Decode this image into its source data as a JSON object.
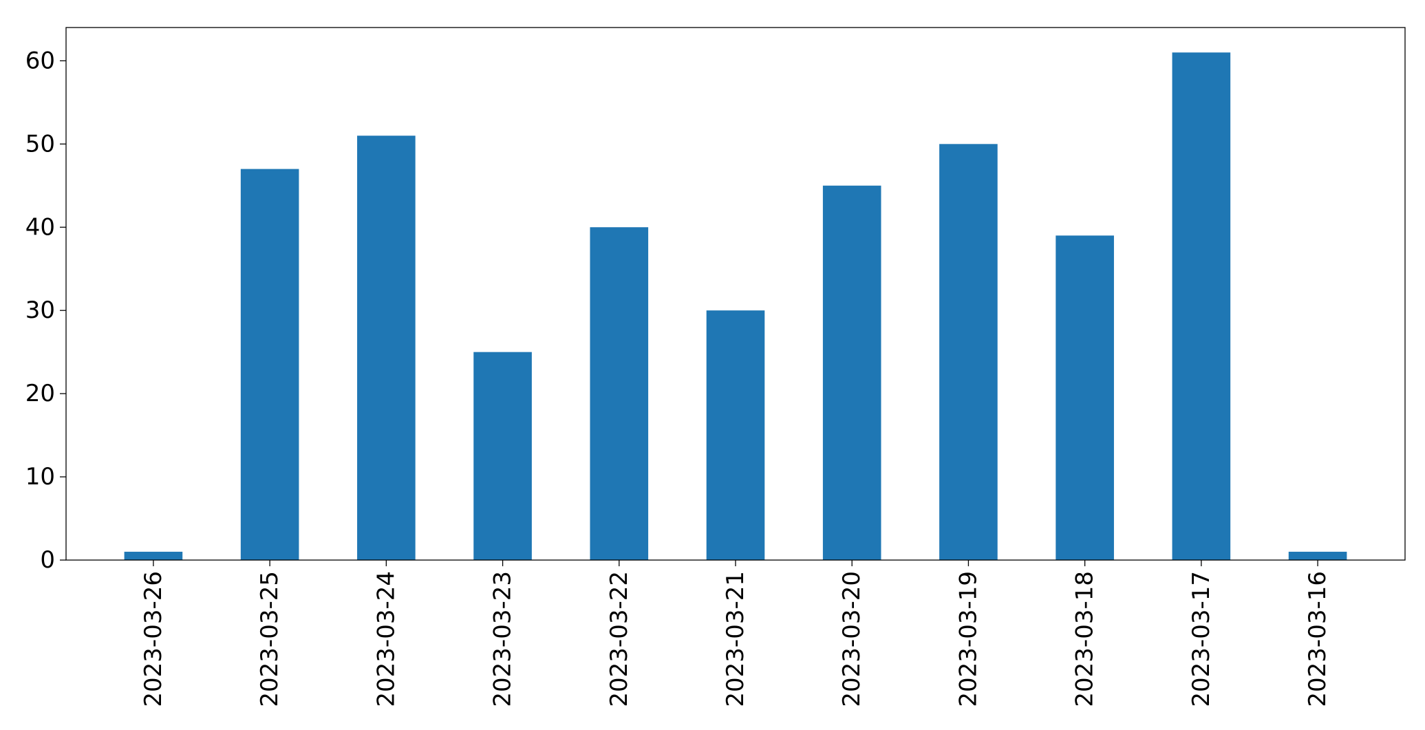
{
  "chart_data": {
    "type": "bar",
    "title": "",
    "xlabel": "",
    "ylabel": "",
    "categories": [
      "2023-03-26",
      "2023-03-25",
      "2023-03-24",
      "2023-03-23",
      "2023-03-22",
      "2023-03-21",
      "2023-03-20",
      "2023-03-19",
      "2023-03-18",
      "2023-03-17",
      "2023-03-16"
    ],
    "values": [
      1,
      47,
      51,
      25,
      40,
      30,
      45,
      50,
      39,
      61,
      1
    ],
    "ylim": [
      0,
      64
    ],
    "yticks": [
      0,
      10,
      20,
      30,
      40,
      50,
      60
    ],
    "grid": false,
    "legend": "none",
    "bar_color": "#1f77b4"
  }
}
